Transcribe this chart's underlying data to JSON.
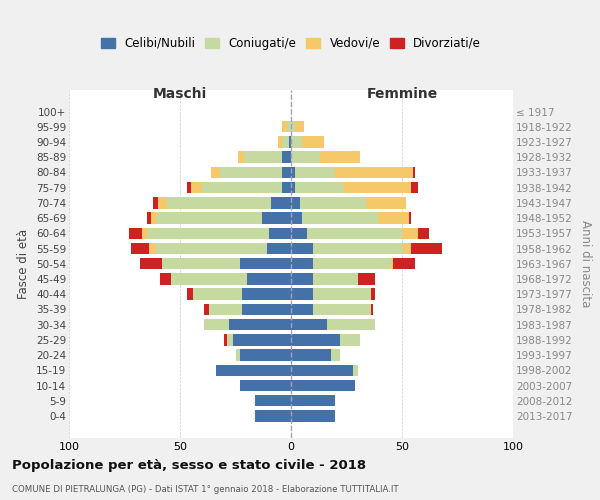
{
  "age_groups": [
    "100+",
    "95-99",
    "90-94",
    "85-89",
    "80-84",
    "75-79",
    "70-74",
    "65-69",
    "60-64",
    "55-59",
    "50-54",
    "45-49",
    "40-44",
    "35-39",
    "30-34",
    "25-29",
    "20-24",
    "15-19",
    "10-14",
    "5-9",
    "0-4"
  ],
  "birth_years": [
    "≤ 1917",
    "1918-1922",
    "1923-1927",
    "1928-1932",
    "1933-1937",
    "1938-1942",
    "1943-1947",
    "1948-1952",
    "1953-1957",
    "1958-1962",
    "1963-1967",
    "1968-1972",
    "1973-1977",
    "1978-1982",
    "1983-1987",
    "1988-1992",
    "1993-1997",
    "1998-2002",
    "2003-2007",
    "2008-2012",
    "2013-2017"
  ],
  "males": {
    "celibi": [
      0,
      0,
      1,
      4,
      4,
      4,
      9,
      13,
      10,
      11,
      23,
      20,
      22,
      22,
      28,
      26,
      23,
      34,
      23,
      16,
      16
    ],
    "coniugati": [
      0,
      2,
      3,
      17,
      28,
      36,
      47,
      48,
      55,
      50,
      35,
      34,
      22,
      15,
      11,
      3,
      2,
      0,
      0,
      0,
      0
    ],
    "vedovi": [
      0,
      2,
      2,
      3,
      4,
      5,
      4,
      2,
      2,
      3,
      0,
      0,
      0,
      0,
      0,
      0,
      0,
      0,
      0,
      0,
      0
    ],
    "divorziati": [
      0,
      0,
      0,
      0,
      0,
      2,
      2,
      2,
      6,
      8,
      10,
      5,
      3,
      2,
      0,
      1,
      0,
      0,
      0,
      0,
      0
    ]
  },
  "females": {
    "nubili": [
      0,
      0,
      0,
      0,
      2,
      2,
      4,
      5,
      7,
      10,
      10,
      10,
      10,
      10,
      16,
      22,
      18,
      28,
      29,
      20,
      20
    ],
    "coniugate": [
      0,
      2,
      5,
      13,
      18,
      22,
      30,
      34,
      43,
      40,
      35,
      20,
      26,
      26,
      22,
      9,
      4,
      2,
      0,
      0,
      0
    ],
    "vedove": [
      0,
      4,
      10,
      18,
      35,
      30,
      18,
      14,
      7,
      4,
      1,
      0,
      0,
      0,
      0,
      0,
      0,
      0,
      0,
      0,
      0
    ],
    "divorziate": [
      0,
      0,
      0,
      0,
      1,
      3,
      0,
      1,
      5,
      14,
      10,
      8,
      2,
      1,
      0,
      0,
      0,
      0,
      0,
      0,
      0
    ]
  },
  "colors": {
    "celibi": "#4472a8",
    "coniugati": "#c5d9a0",
    "vedovi": "#f5c86a",
    "divorziati": "#cc2222"
  },
  "xlim": 100,
  "title": "Popolazione per età, sesso e stato civile - 2018",
  "subtitle": "COMUNE DI PIETRALUNGA (PG) - Dati ISTAT 1° gennaio 2018 - Elaborazione TUTTITALIA.IT",
  "ylabel": "Fasce di età",
  "right_label": "Anni di nascita",
  "bg_color": "#f0f0f0",
  "plot_bg": "#ffffff"
}
